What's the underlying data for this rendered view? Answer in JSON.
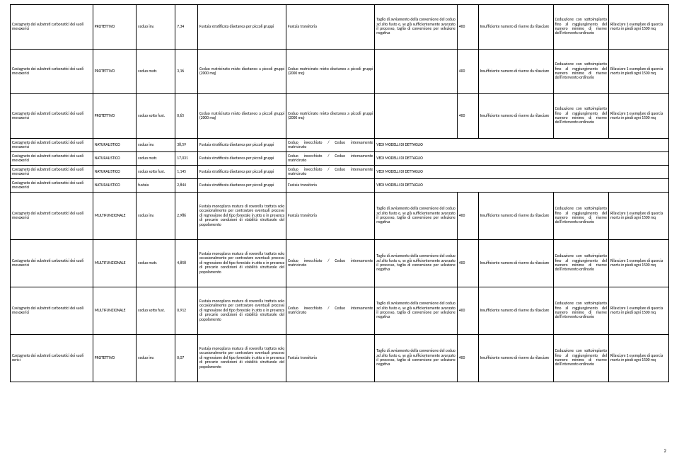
{
  "pagenum": "2",
  "rows": [
    {
      "cls": "tall",
      "c0": "Castagneto dei substrati carbonatici dei suoli mesoxerici",
      "c1": "PROTETTIVO",
      "c2": "ceduo inv.",
      "c3": "7,34",
      "c4": "Fustaia stratificata disetanea per piccoli gruppi",
      "c5": "Fustaia transitoria",
      "c6": "Taglio di avviamento della conversione del ceduo ad alto fusto o, se già sufficientemente avanzato il processo, taglio di conversione per selezione negativa",
      "c7": "400",
      "c8": "Insufficiente numero di riserve da rilasciare",
      "c9": "Ceduazione con sottoimpianto fino al raggiungimento del numero minimo di riserve dell'intervento ordinario",
      "c10": "Rilasciare 1 esemplare di quercia morta in piedi ogni 1500 mq"
    },
    {
      "cls": "tall",
      "c0": "Castagneto dei substrati carbonatici dei suoli mesoxerici",
      "c1": "PROTETTIVO",
      "c2": "ceduo matr.",
      "c3": "3,16",
      "c4": "Ceduo matricinato misto disetaneo a piccoli gruppi (2000 mq)",
      "c5": "Ceduo matricinato misto disetaneo a piccoli gruppi (2000 mq)",
      "c6": "",
      "c7": "400",
      "c8": "Insufficiente numero di riserve da rilasciare",
      "c9": "Ceduazione con sottoimpianto fino al raggiungimento del numero minimo di riserve dell'intervento ordinario",
      "c10": "Rilasciare 1 esemplare di quercia morta in piedi ogni 1500 mq"
    },
    {
      "cls": "tall",
      "c0": "Castagneto dei substrati carbonatici dei suoli mesoxerici",
      "c1": "PROTETTIVO",
      "c2": "ceduo sotto fust.",
      "c3": "0,65",
      "c4": "Ceduo matricinato misto disetaneo a piccoli gruppi (2000 mq)",
      "c5": "Ceduo matricinato misto disetaneo a piccoli gruppi (2000 mq)",
      "c6": "",
      "c7": "400",
      "c8": "Insufficiente numero di riserve da rilasciare",
      "c9": "Ceduazione con sottoimpianto fino al raggiungimento del numero minimo di riserve dell'intervento ordinario",
      "c10": "Rilasciare 1 esemplare di quercia morta in piedi ogni 1500 mq"
    },
    {
      "cls": "short",
      "c0": "Castagneto dei substrati carbonatici dei suoli mesoxerici",
      "c1": "NATURALISTICO",
      "c2": "ceduo inv.",
      "c3": "38,59",
      "c4": "Fustaia stratificata disetanea per piccoli gruppi",
      "c5": "Ceduo invecchiato / Ceduo intensamente matricinato",
      "c6": "VEDI MODELLI DI DETTAGLIO",
      "c7": "",
      "c8": "",
      "c9": "",
      "c10": ""
    },
    {
      "cls": "short",
      "c0": "Castagneto dei substrati carbonatici dei suoli mesoxerici",
      "c1": "NATURALISTICO",
      "c2": "ceduo matr.",
      "c3": "17,031",
      "c4": "Fustaia stratificata disetanea per piccoli gruppi",
      "c5": "Ceduo invecchiato / Ceduo intensamente matricinato",
      "c6": "VEDI MODELLI DI DETTAGLIO",
      "c7": "",
      "c8": "",
      "c9": "",
      "c10": ""
    },
    {
      "cls": "short",
      "c0": "Castagneto dei substrati carbonatici dei suoli mesoxerici",
      "c1": "NATURALISTICO",
      "c2": "ceduo sotto fust.",
      "c3": "1,145",
      "c4": "Fustaia stratificata disetanea per piccoli gruppi",
      "c5": "Ceduo invecchiato / Ceduo intensamente matricinato",
      "c6": "VEDI MODELLI DI DETTAGLIO",
      "c7": "",
      "c8": "",
      "c9": "",
      "c10": ""
    },
    {
      "cls": "short",
      "c0": "Castagneto dei substrati carbonatici dei suoli mesoxerici",
      "c1": "NATURALISTICO",
      "c2": "fustaia",
      "c3": "2,844",
      "c4": "Fustaia stratificata disetanea per piccoli gruppi",
      "c5": "Fustaia transitoria",
      "c6": "VEDI MODELLI DI DETTAGLIO",
      "c7": "",
      "c8": "",
      "c9": "",
      "c10": ""
    },
    {
      "cls": "med",
      "c0": "Castagneto dei substrati carbonatici dei suoli mesoxerici",
      "c1": "MULTIFUNZIONALE",
      "c2": "ceduo inv.",
      "c3": "2,986",
      "c4": "Fustaia monoplana matura di roverella trattata solo occasionalmente per contrastare eventuali processi di regressione del tipo forestale in atto o in presenza di precarie condizioni di stabilità strutturale del popolamento",
      "c5": "Fustaia transitoria",
      "c6": "Taglio di avviamento della conversione del ceduo ad alto fusto o, se già sufficientemente avanzato il processo, taglio di conversione per selezione negativa",
      "c7": "400",
      "c8": "Insufficiente numero di riserve da rilasciare",
      "c9": "Ceduazione con sottoimpianto fino al raggiungimento del numero minimo di riserve dell'intervento ordinario",
      "c10": "Rilasciare 1 esemplare di quercia morta in piedi ogni 1500 mq"
    },
    {
      "cls": "med",
      "c0": "Castagneto dei substrati carbonatici dei suoli mesoxerici",
      "c1": "MULTIFUNZIONALE",
      "c2": "ceduo matr.",
      "c3": "4,858",
      "c4": "Fustaia monoplana matura di roverella trattata solo occasionalmente per contrastare eventuali processi di regressione del tipo forestale in atto o in presenza di precarie condizioni di stabilità strutturale del popolamento",
      "c5": "Ceduo invecchiato / Ceduo intensamente matricinato",
      "c6": "Taglio di avviamento della conversione del ceduo ad alto fusto o, se già sufficientemente avanzato il processo, taglio di conversione per selezione negativa",
      "c7": "400",
      "c8": "Insufficiente numero di riserve da rilasciare",
      "c9": "Ceduazione con sottoimpianto fino al raggiungimento del numero minimo di riserve dell'intervento ordinario",
      "c10": "Rilasciare 1 esemplare di quercia morta in piedi ogni 1500 mq"
    },
    {
      "cls": "med",
      "c0": "Castagneto dei substrati carbonatici dei suoli mesoxerici",
      "c1": "MULTIFUNZIONALE",
      "c2": "ceduo sotto fust.",
      "c3": "0,912",
      "c4": "Fustaia monoplana matura di roverella trattata solo occasionalmente per contrastare eventuali processi di regressione del tipo forestale in atto o in presenza di precarie condizioni di stabilità strutturale del popolamento",
      "c5": "Ceduo invecchiato / Ceduo intensamente matricinato",
      "c6": "Taglio di avviamento della conversione del ceduo ad alto fusto o, se già sufficientemente avanzato il processo, taglio di conversione per selezione negativa",
      "c7": "400",
      "c8": "Insufficiente numero di riserve da rilasciare",
      "c9": "Ceduazione con sottoimpianto fino al raggiungimento del numero minimo di riserve dell'intervento ordinario",
      "c10": "Rilasciare 1 esemplare di quercia morta in piedi ogni 1500 mq"
    },
    {
      "cls": "med",
      "c0": "Castagneto dei substrati carbonatici dei suoli xerici",
      "c1": "PROTETTIVO",
      "c2": "ceduo inv.",
      "c3": "0,07",
      "c4": "Fustaia monoplana matura di roverella trattata solo occasionalmente per contrastare eventuali processi di regressione del tipo forestale in atto o in presenza di precarie condizioni di stabilità strutturale del popolamento",
      "c5": "Fustaia transitoria",
      "c6": "Taglio di avviamento della conversione del ceduo ad alto fusto o, se già sufficientemente avanzato il processo, taglio di conversione per selezione negativa",
      "c7": "400",
      "c8": "Insufficiente numero di riserve da rilasciare",
      "c9": "Ceduazione con sottoimpianto fino al raggiungimento del numero minimo di riserve dell'intervento ordinario",
      "c10": "Rilasciare 1 esemplare di quercia morta in piedi ogni 1500 mq"
    }
  ]
}
